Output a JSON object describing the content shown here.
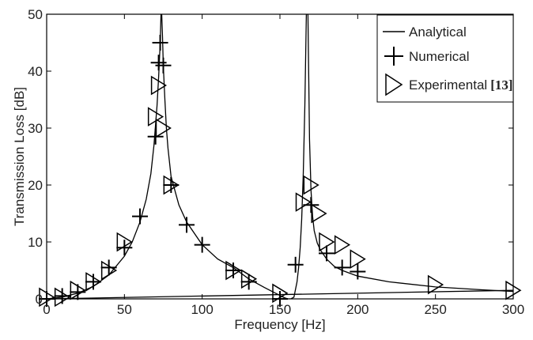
{
  "chart_data": {
    "type": "line",
    "title": "",
    "xlabel": "Frequency [Hz]",
    "ylabel": "Transmission Loss [dB]",
    "xlim": [
      0,
      300
    ],
    "ylim": [
      0,
      50
    ],
    "xticks": [
      0,
      50,
      100,
      150,
      200,
      250,
      300
    ],
    "yticks": [
      0,
      10,
      20,
      30,
      40,
      50
    ],
    "grid": false,
    "legend_position": "top-right",
    "legend": [
      {
        "label": "Analytical",
        "marker": "line"
      },
      {
        "label": "Numerical",
        "marker": "plus"
      },
      {
        "label": "Experimental",
        "ref": "[13]",
        "marker": "triangle-right"
      }
    ],
    "series": [
      {
        "name": "Analytical",
        "style": "line",
        "x": [
          0,
          10,
          20,
          30,
          40,
          50,
          55,
          60,
          64,
          67,
          69,
          71,
          72,
          73,
          73.5,
          74,
          74.5,
          75,
          76,
          77,
          78,
          80,
          85,
          90,
          100,
          110,
          120,
          130,
          140,
          150,
          153,
          155,
          157,
          159,
          161,
          162,
          163,
          164,
          165,
          166,
          167,
          168,
          168.5,
          169,
          170,
          171,
          172,
          174,
          176,
          180,
          185,
          190,
          200,
          220,
          250,
          280,
          300
        ],
        "y": [
          0,
          0.3,
          1,
          2.2,
          4.2,
          7.5,
          10,
          13.5,
          17.5,
          22,
          27,
          34,
          39,
          45,
          50,
          50,
          46,
          41,
          35,
          30,
          26.5,
          21.5,
          16.5,
          13.5,
          9.5,
          7,
          5.5,
          3.5,
          2,
          0.6,
          0.2,
          0,
          0,
          0.3,
          3,
          5.5,
          9,
          14,
          22,
          34,
          50,
          50,
          39,
          28,
          19,
          14.5,
          12,
          9.8,
          8.6,
          7,
          5.7,
          5,
          4,
          3,
          2.1,
          1.6,
          1.3
        ]
      },
      {
        "name": "Analytical",
        "style": "line",
        "x": [
          0,
          300
        ],
        "y": [
          0,
          1.5
        ]
      },
      {
        "name": "Numerical",
        "style": "marker",
        "marker": "plus",
        "x": [
          0,
          10,
          20,
          30,
          40,
          50,
          60,
          70,
          72,
          73,
          75,
          80,
          90,
          100,
          120,
          130,
          150,
          160,
          170,
          180,
          190,
          200
        ],
        "y": [
          0,
          0.5,
          1.2,
          3,
          5.5,
          9,
          14.5,
          28.5,
          41.5,
          45,
          41,
          20,
          13,
          9.5,
          5,
          3,
          0,
          6,
          16.5,
          8,
          5.5,
          4.8
        ]
      },
      {
        "name": "Experimental",
        "style": "marker",
        "marker": "triangle-right",
        "x": [
          0,
          10,
          20,
          30,
          40,
          50,
          70,
          72,
          75,
          80,
          120,
          130,
          150,
          165,
          170,
          175,
          180,
          190,
          200,
          250,
          300
        ],
        "y": [
          0.3,
          0.3,
          1.5,
          3,
          5,
          10,
          32,
          37.5,
          30,
          20,
          5,
          3.5,
          1,
          17,
          20,
          15,
          10,
          9.5,
          7,
          2.5,
          1.5
        ]
      }
    ]
  }
}
